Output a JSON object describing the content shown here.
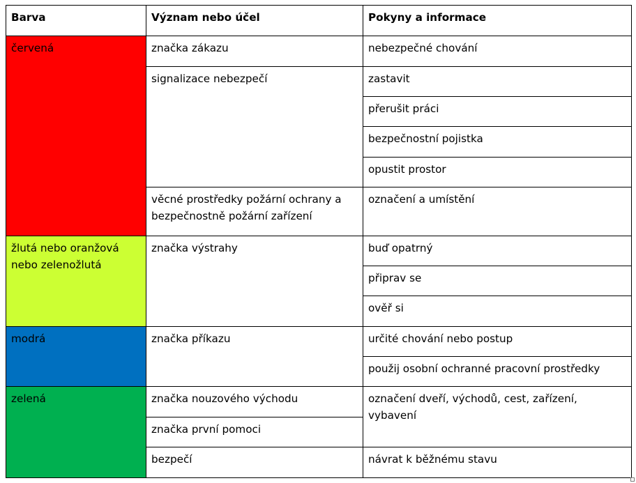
{
  "colors": {
    "red": "#ff0000",
    "yellow": "#ccff33",
    "blue": "#0070c0",
    "green": "#00b050"
  },
  "table": {
    "headers": [
      "Barva",
      "Význam nebo účel",
      "Pokyny a informace"
    ],
    "red": {
      "color": "červená",
      "meanings": [
        "značka zákazu",
        "signalizace nebezpečí",
        "věcné prostředky požární ochrany a bezpečnostně požární zařízení"
      ],
      "instructions": [
        "nebezpečné chování",
        "zastavit",
        "přerušit práci",
        "bezpečnostní pojistka",
        "opustit prostor",
        "označení a umístění"
      ]
    },
    "yellow": {
      "color": "žlutá nebo oranžová nebo zelenožlutá",
      "meanings": [
        "značka výstrahy"
      ],
      "instructions": [
        "buď opatrný",
        "připrav se",
        "ověř si"
      ]
    },
    "blue": {
      "color": "modrá",
      "meanings": [
        "značka příkazu"
      ],
      "instructions": [
        "určité chování nebo postup",
        "použij osobní ochranné pracovní prostředky"
      ]
    },
    "green": {
      "color": "zelená",
      "meanings": [
        "značka nouzového východu",
        "značka první pomoci",
        "bezpečí"
      ],
      "instructions": [
        "označení dveří, východů, cest, zařízení, vybavení",
        "návrat k běžnému stavu"
      ]
    }
  }
}
